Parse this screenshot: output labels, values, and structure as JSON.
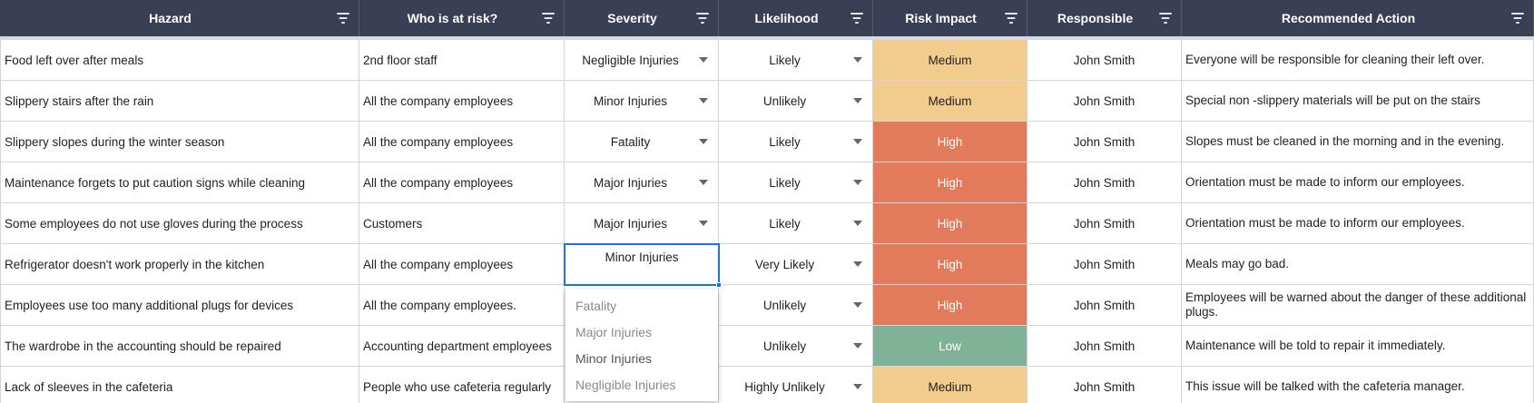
{
  "columns": [
    {
      "label": "Hazard"
    },
    {
      "label": "Who is at risk?"
    },
    {
      "label": "Severity"
    },
    {
      "label": "Likelihood"
    },
    {
      "label": "Risk Impact"
    },
    {
      "label": "Responsible"
    },
    {
      "label": "Recommended Action"
    }
  ],
  "rows": [
    {
      "hazard": "Food left over after meals",
      "who": "2nd floor staff",
      "severity": "Negligible Injuries",
      "likelihood": "Likely",
      "risk": "Medium",
      "responsible": "John Smith",
      "action": "Everyone will be responsible for cleaning their left over."
    },
    {
      "hazard": "Slippery stairs after the rain",
      "who": "All the company employees",
      "severity": "Minor Injuries",
      "likelihood": "Unlikely",
      "risk": "Medium",
      "responsible": "John Smith",
      "action": "Special non -slippery materials will be put on the stairs"
    },
    {
      "hazard": "Slippery slopes during the winter season",
      "who": "All the company employees",
      "severity": "Fatality",
      "likelihood": "Likely",
      "risk": "High",
      "responsible": "John Smith",
      "action": "Slopes must be cleaned in the morning and in the evening."
    },
    {
      "hazard": "Maintenance forgets to put caution signs while cleaning",
      "who": "All the company employees",
      "severity": "Major Injuries",
      "likelihood": "Likely",
      "risk": "High",
      "responsible": "John Smith",
      "action": "Orientation must be made to inform our employees."
    },
    {
      "hazard": "Some employees do not use gloves during the process",
      "who": "Customers",
      "severity": "Major Injuries",
      "likelihood": "Likely",
      "risk": "High",
      "responsible": "John Smith",
      "action": "Orientation must be made to inform our employees."
    },
    {
      "hazard": "Refrigerator doesn't work properly in the kitchen",
      "who": "All the company employees",
      "severity": "Minor Injuries",
      "likelihood": "Very Likely",
      "risk": "High",
      "responsible": "John Smith",
      "action": "Meals may go bad."
    },
    {
      "hazard": "Employees use too many additional plugs for devices",
      "who": "All the company employees.",
      "severity": "",
      "likelihood": "Unlikely",
      "risk": "High",
      "responsible": "John Smith",
      "action": "Employees will be warned about the danger of these additional plugs."
    },
    {
      "hazard": "The wardrobe in the accounting should be repaired",
      "who": "Accounting department employees",
      "severity": "",
      "likelihood": "Unlikely",
      "risk": "Low",
      "responsible": "John Smith",
      "action": "Maintenance will be told to repair it immediately."
    },
    {
      "hazard": "Lack of sleeves in the cafeteria",
      "who": "People who use cafeteria regularly",
      "severity": "",
      "likelihood": "Highly Unlikely",
      "risk": "Medium",
      "responsible": "John Smith",
      "action": "This issue will be talked with the cafeteria manager."
    }
  ],
  "active_cell": {
    "value": "Minor Injuries"
  },
  "severity_dropdown": {
    "options": [
      "Fatality",
      "Major Injuries",
      "Minor Injuries",
      "Negligible Injuries"
    ],
    "selected": "Minor Injuries"
  },
  "colors": {
    "header_bg": "#3b3f55",
    "high": "#e27a5c",
    "medium": "#f2cc8d",
    "low": "#7fb297",
    "selection": "#1a73e8"
  }
}
